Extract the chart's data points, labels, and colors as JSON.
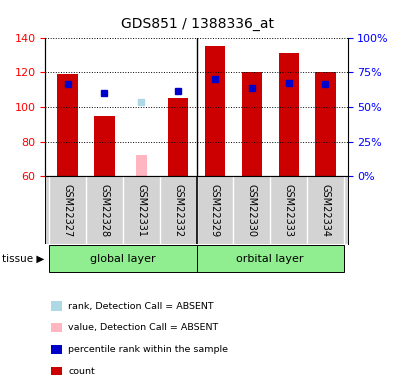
{
  "title": "GDS851 / 1388336_at",
  "samples": [
    "GSM22327",
    "GSM22328",
    "GSM22331",
    "GSM22332",
    "GSM22329",
    "GSM22330",
    "GSM22333",
    "GSM22334"
  ],
  "group_labels": [
    "global layer",
    "orbital layer"
  ],
  "bar_values": [
    119,
    95,
    null,
    105,
    135,
    120,
    131,
    120
  ],
  "absent_bar_values": [
    null,
    null,
    72,
    null,
    null,
    null,
    null,
    null
  ],
  "rank_values": [
    113,
    108,
    null,
    109,
    116,
    111,
    114,
    113
  ],
  "absent_rank_values": [
    null,
    null,
    103,
    null,
    null,
    null,
    null,
    null
  ],
  "ylim_left": [
    60,
    140
  ],
  "ylim_right": [
    0,
    100
  ],
  "yticks_left": [
    60,
    80,
    100,
    120,
    140
  ],
  "yticks_right": [
    0,
    25,
    50,
    75,
    100
  ],
  "yticklabels_right": [
    "0%",
    "25%",
    "50%",
    "75%",
    "100%"
  ],
  "bar_color": "#CC0000",
  "absent_bar_color": "#FFB6C1",
  "rank_color": "#0000CC",
  "absent_rank_color": "#ADD8E6",
  "bg_color": "#FFFFFF",
  "legend_items": [
    {
      "label": "count",
      "color": "#CC0000"
    },
    {
      "label": "percentile rank within the sample",
      "color": "#0000CC"
    },
    {
      "label": "value, Detection Call = ABSENT",
      "color": "#FFB6C1"
    },
    {
      "label": "rank, Detection Call = ABSENT",
      "color": "#ADD8E6"
    }
  ]
}
